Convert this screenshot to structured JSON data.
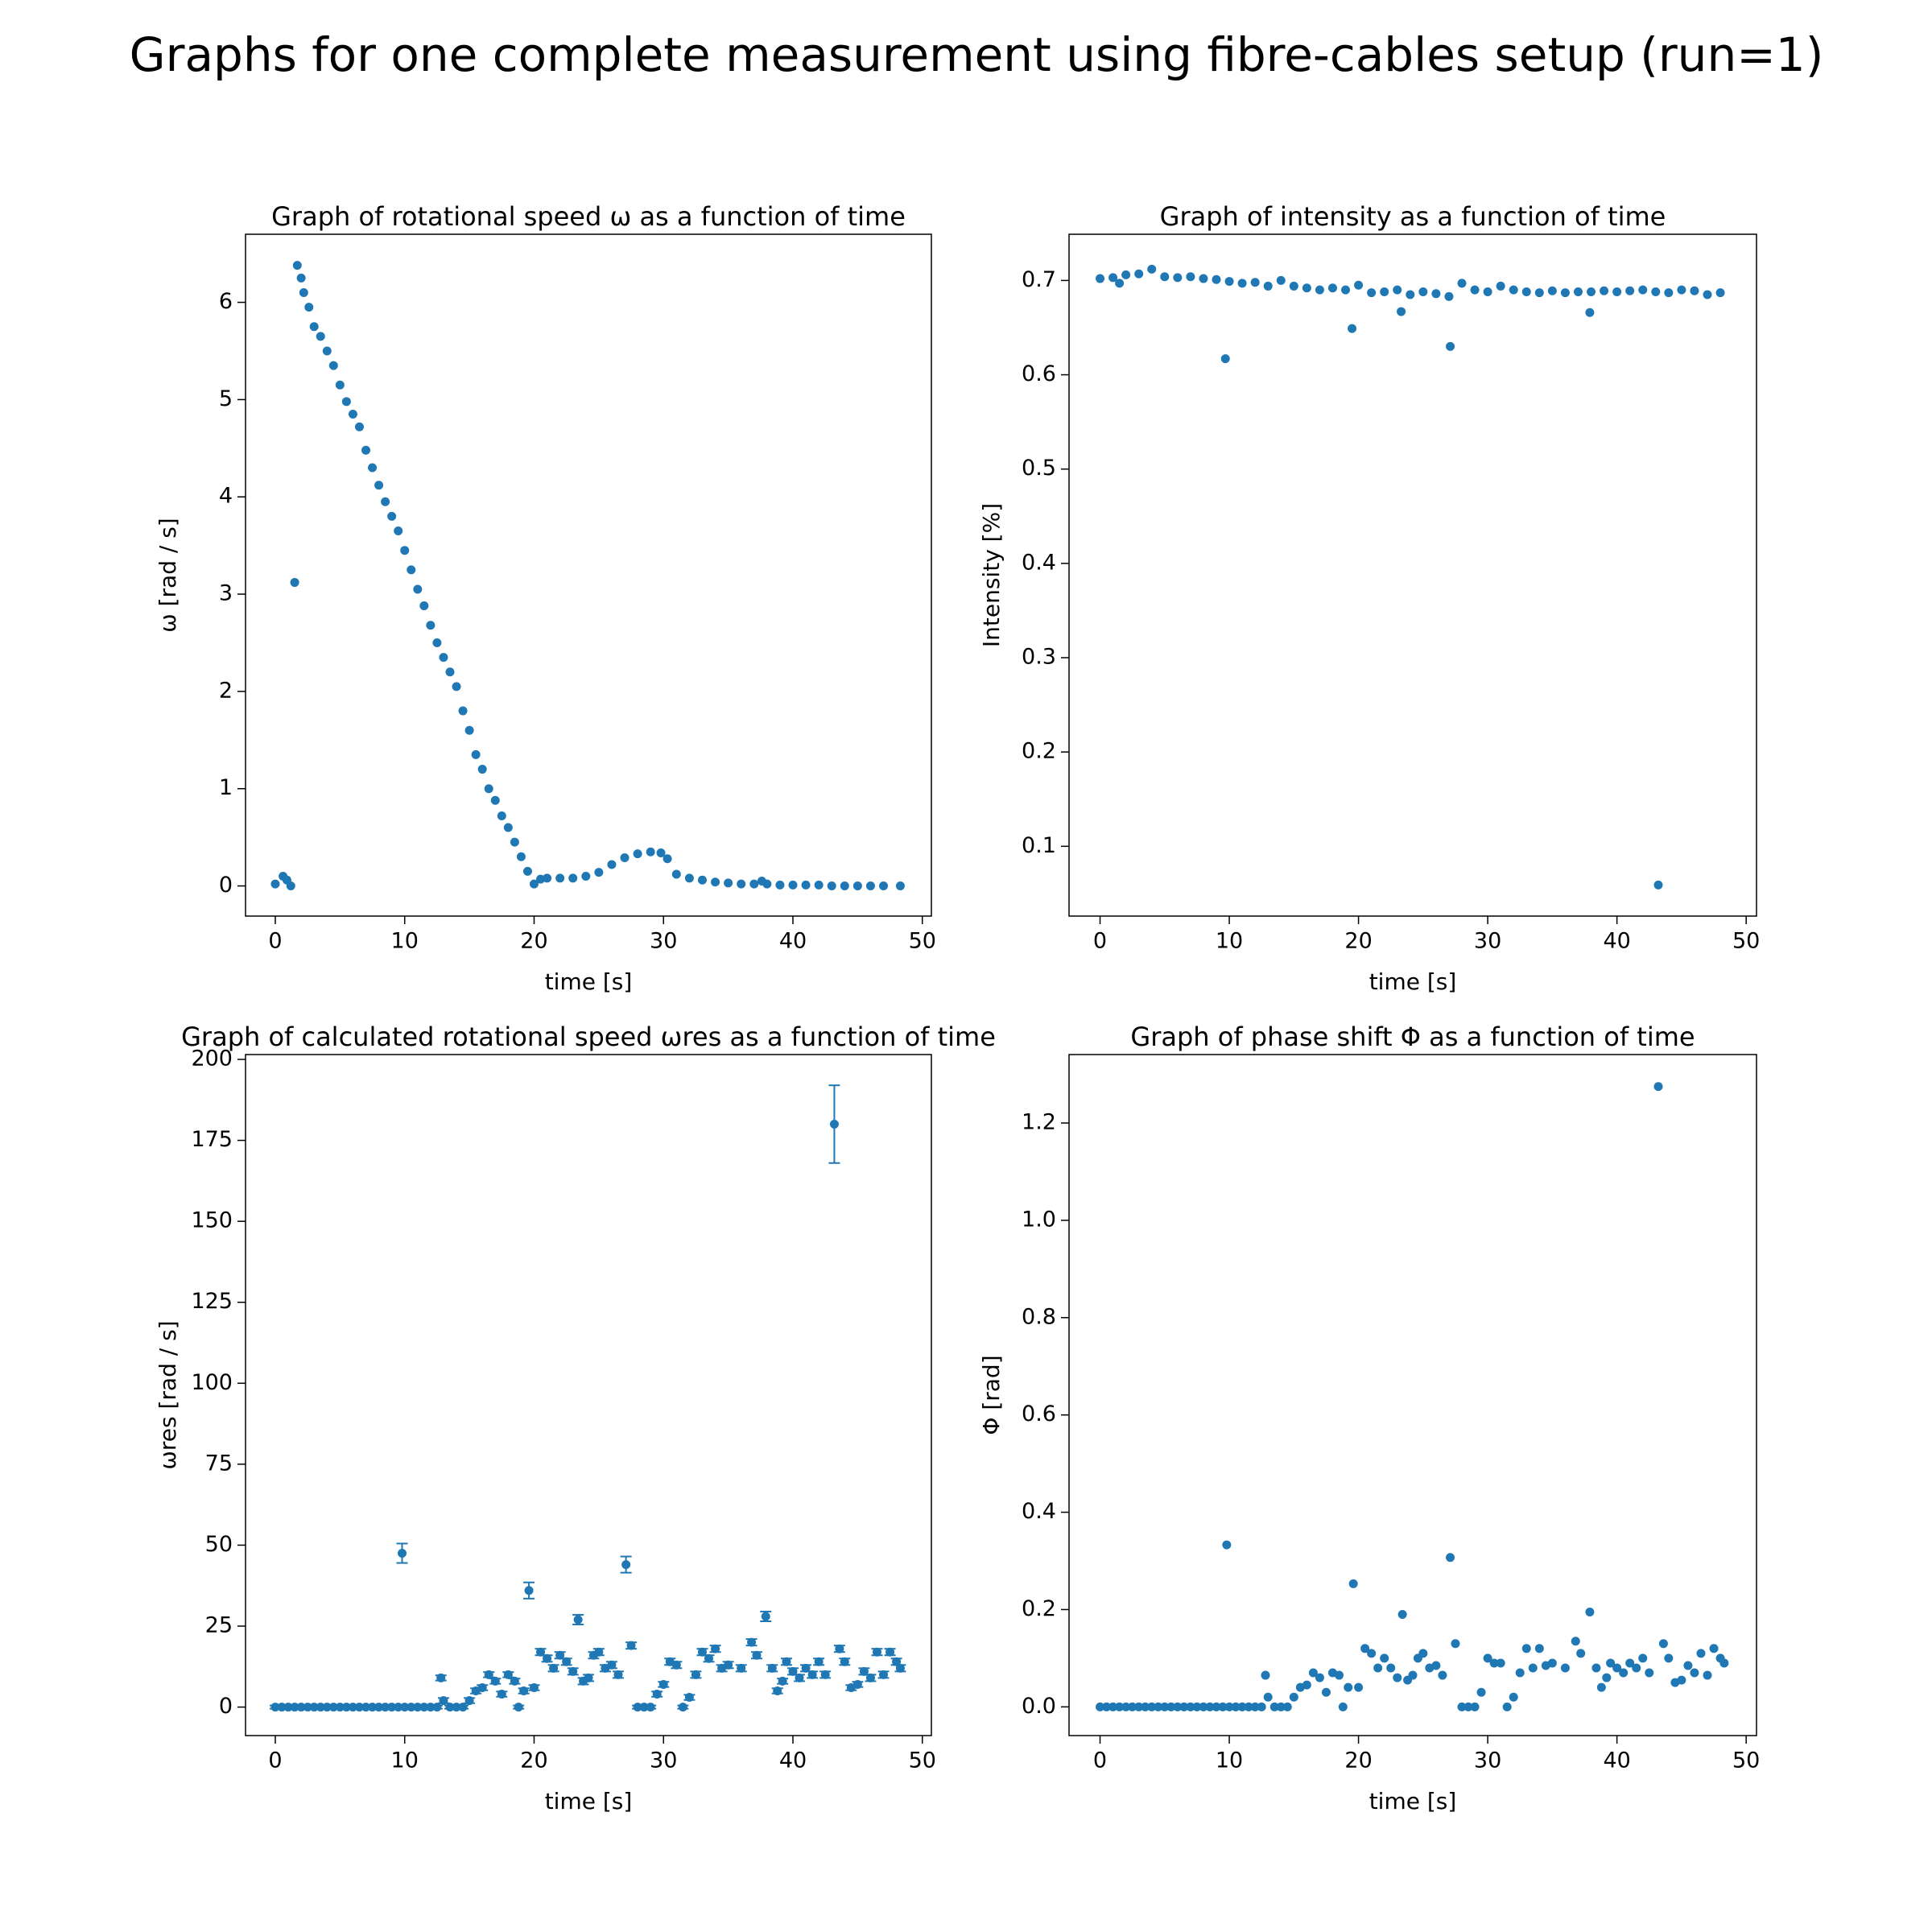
{
  "title": "Graphs for one complete measurement using fibre-cables setup (run=1)",
  "chart_data": [
    {
      "type": "scatter",
      "title": "Graph of rotational speed ω as a function of time",
      "xlabel": "time [s]",
      "ylabel": "ω [rad / s]",
      "color": "#1f77b4",
      "xlim": [
        -2.3,
        50.7
      ],
      "ylim": [
        -0.31,
        6.7
      ],
      "xticks": [
        0,
        10,
        20,
        30,
        40,
        50
      ],
      "yticks": [
        0,
        1,
        2,
        3,
        4,
        5,
        6
      ],
      "x": [
        0,
        0.6,
        0.9,
        1.2,
        1.5,
        1.7,
        2,
        2.2,
        2.6,
        3,
        3.5,
        4,
        4.5,
        5,
        5.5,
        6,
        6.5,
        7,
        7.5,
        8,
        8.5,
        9,
        9.5,
        10,
        10.5,
        11,
        11.5,
        12,
        12.5,
        13,
        13.5,
        14,
        14.5,
        15,
        15.5,
        16,
        16.5,
        17,
        17.5,
        18,
        18.5,
        19,
        19.5,
        20,
        20.5,
        21,
        22,
        23,
        24,
        25,
        26,
        27,
        28,
        29,
        29.8,
        30.3,
        31,
        32,
        33,
        34,
        35,
        36,
        37,
        37.6,
        38,
        39,
        40,
        41,
        42,
        43,
        44,
        45,
        46,
        47,
        48.3
      ],
      "values": [
        0.02,
        0.1,
        0.06,
        0,
        3.12,
        6.38,
        6.25,
        6.1,
        5.95,
        5.75,
        5.65,
        5.5,
        5.35,
        5.15,
        4.98,
        4.85,
        4.72,
        4.48,
        4.3,
        4.12,
        3.95,
        3.8,
        3.65,
        3.45,
        3.25,
        3.05,
        2.88,
        2.68,
        2.5,
        2.35,
        2.2,
        2.05,
        1.8,
        1.6,
        1.35,
        1.2,
        1.0,
        0.88,
        0.72,
        0.6,
        0.45,
        0.3,
        0.15,
        0.02,
        0.07,
        0.08,
        0.08,
        0.08,
        0.1,
        0.14,
        0.22,
        0.29,
        0.33,
        0.35,
        0.34,
        0.28,
        0.12,
        0.08,
        0.06,
        0.04,
        0.03,
        0.02,
        0.02,
        0.05,
        0.02,
        0.01,
        0.01,
        0.01,
        0.01,
        0,
        0,
        0,
        0,
        0,
        0
      ]
    },
    {
      "type": "scatter",
      "title": "Graph of intensity as a function of time",
      "xlabel": "time [s]",
      "ylabel": "Intensity [%]",
      "color": "#1f77b4",
      "xlim": [
        -2.4,
        50.8
      ],
      "ylim": [
        0.026,
        0.749
      ],
      "xticks": [
        0,
        10,
        20,
        30,
        40,
        50
      ],
      "yticks": [
        0.1,
        0.2,
        0.3,
        0.4,
        0.5,
        0.6,
        0.7
      ],
      "x": [
        0,
        1,
        1.5,
        2,
        3,
        4,
        5,
        6,
        7,
        8,
        9,
        9.7,
        10,
        11,
        12,
        13,
        14,
        15,
        16,
        17,
        18,
        19,
        19.5,
        20,
        21,
        22,
        23,
        23.3,
        24,
        25,
        26,
        27,
        27.1,
        28,
        29,
        30,
        31,
        32,
        33,
        34,
        35,
        36,
        37,
        37.9,
        38,
        39,
        40,
        41,
        42,
        43,
        43.2,
        44,
        45,
        46,
        47,
        48
      ],
      "values": [
        0.702,
        0.703,
        0.697,
        0.706,
        0.707,
        0.712,
        0.704,
        0.703,
        0.704,
        0.702,
        0.701,
        0.617,
        0.699,
        0.697,
        0.698,
        0.694,
        0.7,
        0.694,
        0.692,
        0.69,
        0.692,
        0.69,
        0.649,
        0.695,
        0.687,
        0.688,
        0.69,
        0.667,
        0.685,
        0.688,
        0.686,
        0.683,
        0.63,
        0.697,
        0.69,
        0.688,
        0.694,
        0.69,
        0.688,
        0.687,
        0.689,
        0.687,
        0.688,
        0.666,
        0.688,
        0.689,
        0.688,
        0.689,
        0.69,
        0.688,
        0.059,
        0.687,
        0.69,
        0.689,
        0.685,
        0.687
      ]
    },
    {
      "type": "errorbar",
      "title": "Graph of calculated rotational speed ωres as a function of time",
      "xlabel": "time [s]",
      "ylabel": "ωres [rad / s]",
      "color": "#1f77b4",
      "xlim": [
        -2.3,
        50.7
      ],
      "ylim": [
        -8.8,
        201.5
      ],
      "xticks": [
        0,
        10,
        20,
        30,
        40,
        50
      ],
      "yticks": [
        0,
        25,
        50,
        75,
        100,
        125,
        150,
        175,
        200
      ],
      "x": [
        0,
        0.5,
        1,
        1.5,
        2,
        2.5,
        3,
        3.5,
        4,
        4.5,
        5,
        5.5,
        6,
        6.5,
        7,
        7.5,
        8,
        8.5,
        9,
        9.5,
        9.8,
        10,
        10.5,
        11,
        11.5,
        12,
        12.5,
        12.8,
        13,
        13.5,
        14,
        14.5,
        15,
        15.5,
        16,
        16.5,
        17,
        17.5,
        18,
        18.5,
        18.8,
        19.2,
        19.6,
        20,
        20.5,
        21,
        21.5,
        22,
        22.5,
        23,
        23.4,
        23.8,
        24.2,
        24.6,
        25,
        25.5,
        26,
        26.5,
        27.1,
        27.5,
        28,
        28.5,
        29,
        29.5,
        30,
        30.5,
        31,
        31.5,
        32,
        32.5,
        33,
        33.5,
        34,
        34.5,
        35,
        36,
        36.8,
        37.2,
        37.9,
        38.4,
        38.8,
        39.2,
        39.5,
        40,
        40.5,
        41,
        41.5,
        42,
        42.5,
        43.2,
        43.6,
        44,
        44.5,
        45,
        45.5,
        46,
        46.5,
        47,
        47.5,
        48,
        48.3
      ],
      "values": [
        0,
        0,
        0,
        0,
        0,
        0,
        0,
        0,
        0,
        0,
        0,
        0,
        0,
        0,
        0,
        0,
        0,
        0,
        0,
        0,
        47.5,
        0,
        0,
        0,
        0,
        0,
        0,
        9,
        2,
        0,
        0,
        0,
        2,
        5,
        6,
        10,
        8,
        4,
        10,
        8,
        0,
        5,
        36,
        6,
        17,
        15,
        12,
        16,
        14,
        11,
        27,
        8,
        9,
        16,
        17,
        12,
        13,
        10,
        44,
        19,
        0,
        0,
        0,
        4,
        7,
        14,
        13,
        0,
        3,
        10,
        17,
        15,
        18,
        12,
        13,
        12,
        20,
        16,
        28,
        12,
        5,
        8,
        14,
        11,
        9,
        12,
        10,
        14,
        10,
        180,
        18,
        14,
        6,
        7,
        11,
        9,
        17,
        10,
        17,
        14,
        12
      ],
      "yerr": [
        0.5,
        0.5,
        0.5,
        0.5,
        0.5,
        0.5,
        0.5,
        0.5,
        0.5,
        0.5,
        0.5,
        0.5,
        0.5,
        0.5,
        0.5,
        0.5,
        0.5,
        0.5,
        0.5,
        0.5,
        3,
        0.5,
        0.5,
        0.5,
        0.5,
        0.5,
        0.5,
        0.8,
        0.8,
        0.5,
        0.5,
        0.5,
        0.8,
        0.8,
        0.8,
        0.8,
        0.8,
        0.8,
        0.8,
        0.8,
        0.5,
        0.8,
        2.5,
        0.8,
        1,
        1,
        1,
        1,
        1,
        1,
        1.5,
        1,
        1,
        1,
        1,
        1,
        1,
        1,
        2.5,
        1,
        0.5,
        0.5,
        0.5,
        0.8,
        0.8,
        1,
        1,
        0.5,
        0.8,
        1,
        1,
        1,
        1,
        1,
        1,
        1,
        1,
        1,
        1.5,
        1,
        0.8,
        0.8,
        1,
        1,
        1,
        1,
        1,
        1,
        1,
        12,
        1,
        1,
        0.8,
        0.8,
        1,
        1,
        1,
        1,
        1,
        1,
        1
      ]
    },
    {
      "type": "scatter",
      "title": "Graph of phase shift Φ as a function of time",
      "xlabel": "time [s]",
      "ylabel": "Φ [rad]",
      "color": "#1f77b4",
      "xlim": [
        -2.4,
        50.8
      ],
      "ylim": [
        -0.059,
        1.3407
      ],
      "xticks": [
        0,
        10,
        20,
        30,
        40,
        50
      ],
      "yticks": [
        {
          "value": 0,
          "label": "0.0"
        },
        0.2,
        0.4,
        0.6,
        0.8,
        {
          "value": 1,
          "label": "1.0"
        },
        1.2
      ],
      "x": [
        0,
        0.5,
        1,
        1.5,
        2,
        2.5,
        3,
        3.5,
        4,
        4.5,
        5,
        5.5,
        6,
        6.5,
        7,
        7.5,
        8,
        8.5,
        9,
        9.5,
        9.8,
        10,
        10.5,
        11,
        11.5,
        12,
        12.5,
        12.8,
        13,
        13.5,
        14,
        14.5,
        15,
        15.5,
        16,
        16.5,
        17,
        17.5,
        18,
        18.5,
        18.8,
        19.2,
        19.6,
        20,
        20.5,
        21,
        21.5,
        22,
        22.5,
        23,
        23.4,
        23.8,
        24.2,
        24.6,
        25,
        25.5,
        26,
        26.5,
        27.1,
        27.5,
        28,
        28.5,
        29,
        29.5,
        30,
        30.5,
        31,
        31.5,
        32,
        32.5,
        33,
        33.5,
        34,
        34.5,
        35,
        36,
        36.8,
        37.2,
        37.9,
        38.4,
        38.8,
        39.2,
        39.5,
        40,
        40.5,
        41,
        41.5,
        42,
        42.5,
        43.2,
        43.6,
        44,
        44.5,
        45,
        45.5,
        46,
        46.5,
        47,
        47.5,
        48,
        48.3
      ],
      "values": [
        0,
        0,
        0,
        0,
        0,
        0,
        0,
        0,
        0,
        0,
        0,
        0,
        0,
        0,
        0,
        0,
        0,
        0,
        0,
        0,
        0.333,
        0,
        0,
        0,
        0,
        0,
        0,
        0.065,
        0.02,
        0,
        0,
        0,
        0.02,
        0.04,
        0.045,
        0.07,
        0.06,
        0.03,
        0.07,
        0.065,
        0,
        0.04,
        0.253,
        0.04,
        0.12,
        0.11,
        0.08,
        0.1,
        0.08,
        0.06,
        0.19,
        0.055,
        0.065,
        0.1,
        0.11,
        0.08,
        0.085,
        0.065,
        0.307,
        0.13,
        0,
        0,
        0,
        0.03,
        0.1,
        0.09,
        0.09,
        0,
        0.02,
        0.07,
        0.12,
        0.08,
        0.12,
        0.085,
        0.09,
        0.08,
        0.135,
        0.11,
        0.195,
        0.08,
        0.04,
        0.06,
        0.09,
        0.08,
        0.07,
        0.09,
        0.08,
        0.1,
        0.07,
        1.275,
        0.13,
        0.1,
        0.05,
        0.055,
        0.085,
        0.07,
        0.11,
        0.065,
        0.12,
        0.1,
        0.09
      ]
    }
  ]
}
